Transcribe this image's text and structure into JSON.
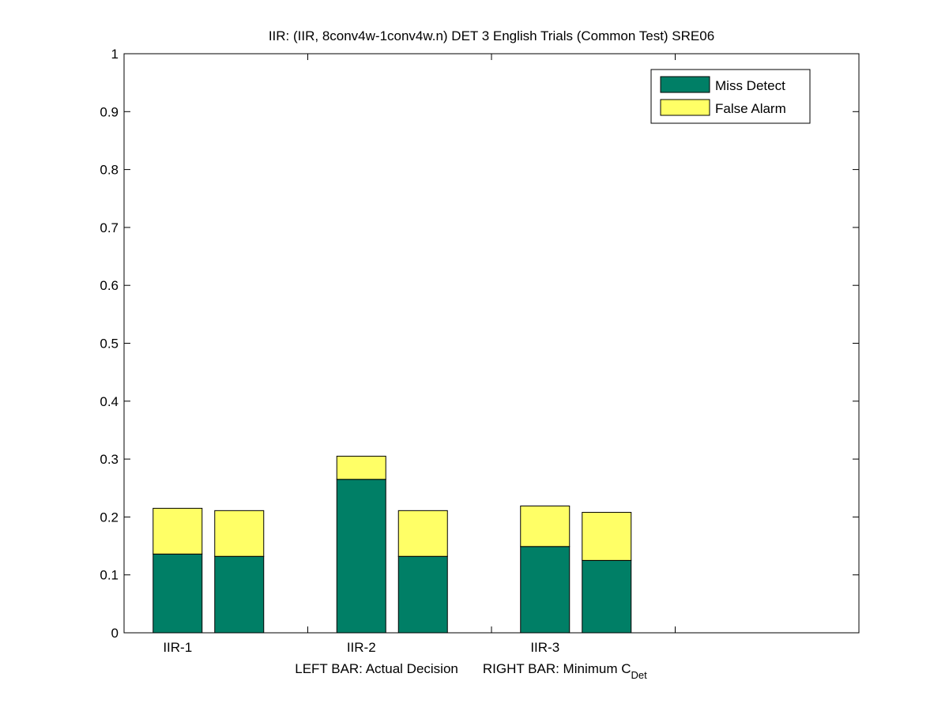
{
  "chart_data": {
    "type": "bar",
    "subtype": "stacked-grouped",
    "title": "IIR: (IIR, 8conv4w-1conv4w.n) DET 3 English Trials (Common Test) SRE06",
    "xlabel": {
      "left": "LEFT BAR: Actual Decision",
      "right_main": "RIGHT BAR: Minimum C",
      "right_subscript": "Det"
    },
    "ylabel": "",
    "ylim": [
      0,
      1
    ],
    "yticks": [
      "0",
      "0.1",
      "0.2",
      "0.3",
      "0.4",
      "0.5",
      "0.6",
      "0.7",
      "0.8",
      "0.9",
      "1"
    ],
    "categories": [
      "IIR-1",
      "IIR-2",
      "IIR-3"
    ],
    "x_slots": 4,
    "bars_per_category": [
      "Actual Decision",
      "Minimum CDet"
    ],
    "series": [
      {
        "name": "Miss Detect",
        "color": "#007f66",
        "values": [
          [
            0.136,
            0.132
          ],
          [
            0.265,
            0.132
          ],
          [
            0.149,
            0.125
          ]
        ]
      },
      {
        "name": "False Alarm",
        "color": "#ffff66",
        "values": [
          [
            0.079,
            0.079
          ],
          [
            0.04,
            0.079
          ],
          [
            0.07,
            0.083
          ]
        ]
      }
    ],
    "legend": {
      "position": "top-right",
      "entries": [
        "Miss Detect",
        "False Alarm"
      ]
    },
    "grid": false
  }
}
